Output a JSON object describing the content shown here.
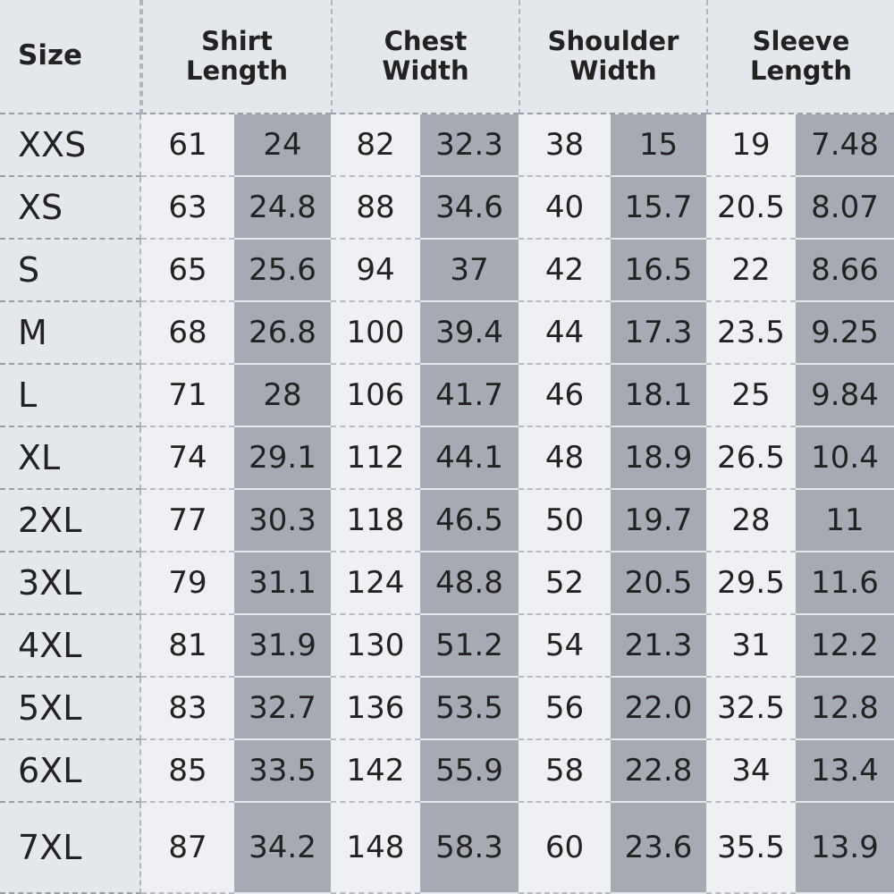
{
  "table": {
    "header": [
      "Size",
      "Shirt Length",
      "Chest Width",
      "Shoulder Width",
      "Sleeve Length"
    ],
    "rows": [
      [
        "XXS",
        "61",
        "24",
        "82",
        "32.3",
        "38",
        "15",
        "19",
        "7.48"
      ],
      [
        "XS",
        "63",
        "24.8",
        "88",
        "34.6",
        "40",
        "15.7",
        "20.5",
        "8.07"
      ],
      [
        "S",
        "65",
        "25.6",
        "94",
        "37",
        "42",
        "16.5",
        "22",
        "8.66"
      ],
      [
        "M",
        "68",
        "26.8",
        "100",
        "39.4",
        "44",
        "17.3",
        "23.5",
        "9.25"
      ],
      [
        "L",
        "71",
        "28",
        "106",
        "41.7",
        "46",
        "18.1",
        "25",
        "9.84"
      ],
      [
        "XL",
        "74",
        "29.1",
        "112",
        "44.1",
        "48",
        "18.9",
        "26.5",
        "10.4"
      ],
      [
        "2XL",
        "77",
        "30.3",
        "118",
        "46.5",
        "50",
        "19.7",
        "28",
        "11"
      ],
      [
        "3XL",
        "79",
        "31.1",
        "124",
        "48.8",
        "52",
        "20.5",
        "29.5",
        "11.6"
      ],
      [
        "4XL",
        "81",
        "31.9",
        "130",
        "51.2",
        "54",
        "21.3",
        "31",
        "12.2"
      ],
      [
        "5XL",
        "83",
        "32.7",
        "136",
        "53.5",
        "56",
        "22.0",
        "32.5",
        "12.8"
      ],
      [
        "6XL",
        "85",
        "33.5",
        "142",
        "55.9",
        "58",
        "22.8",
        "34",
        "13.4"
      ],
      [
        "7XL",
        "87",
        "34.2",
        "148",
        "58.3",
        "60",
        "23.6",
        "35.5",
        "13.9"
      ]
    ]
  }
}
